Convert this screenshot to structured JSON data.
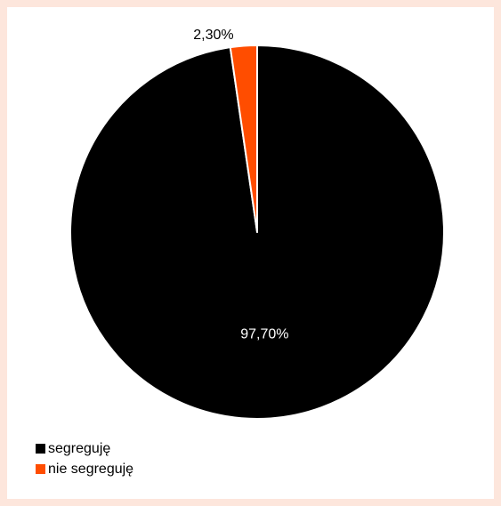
{
  "chart_data": {
    "type": "pie",
    "categories": [
      "segreguję",
      "nie segreguję"
    ],
    "values": [
      97.7,
      2.3
    ],
    "labels": [
      "97,70%",
      "2,30%"
    ],
    "colors": [
      "#000000",
      "#ff4d00"
    ],
    "legend": "bottom-left",
    "title": ""
  }
}
